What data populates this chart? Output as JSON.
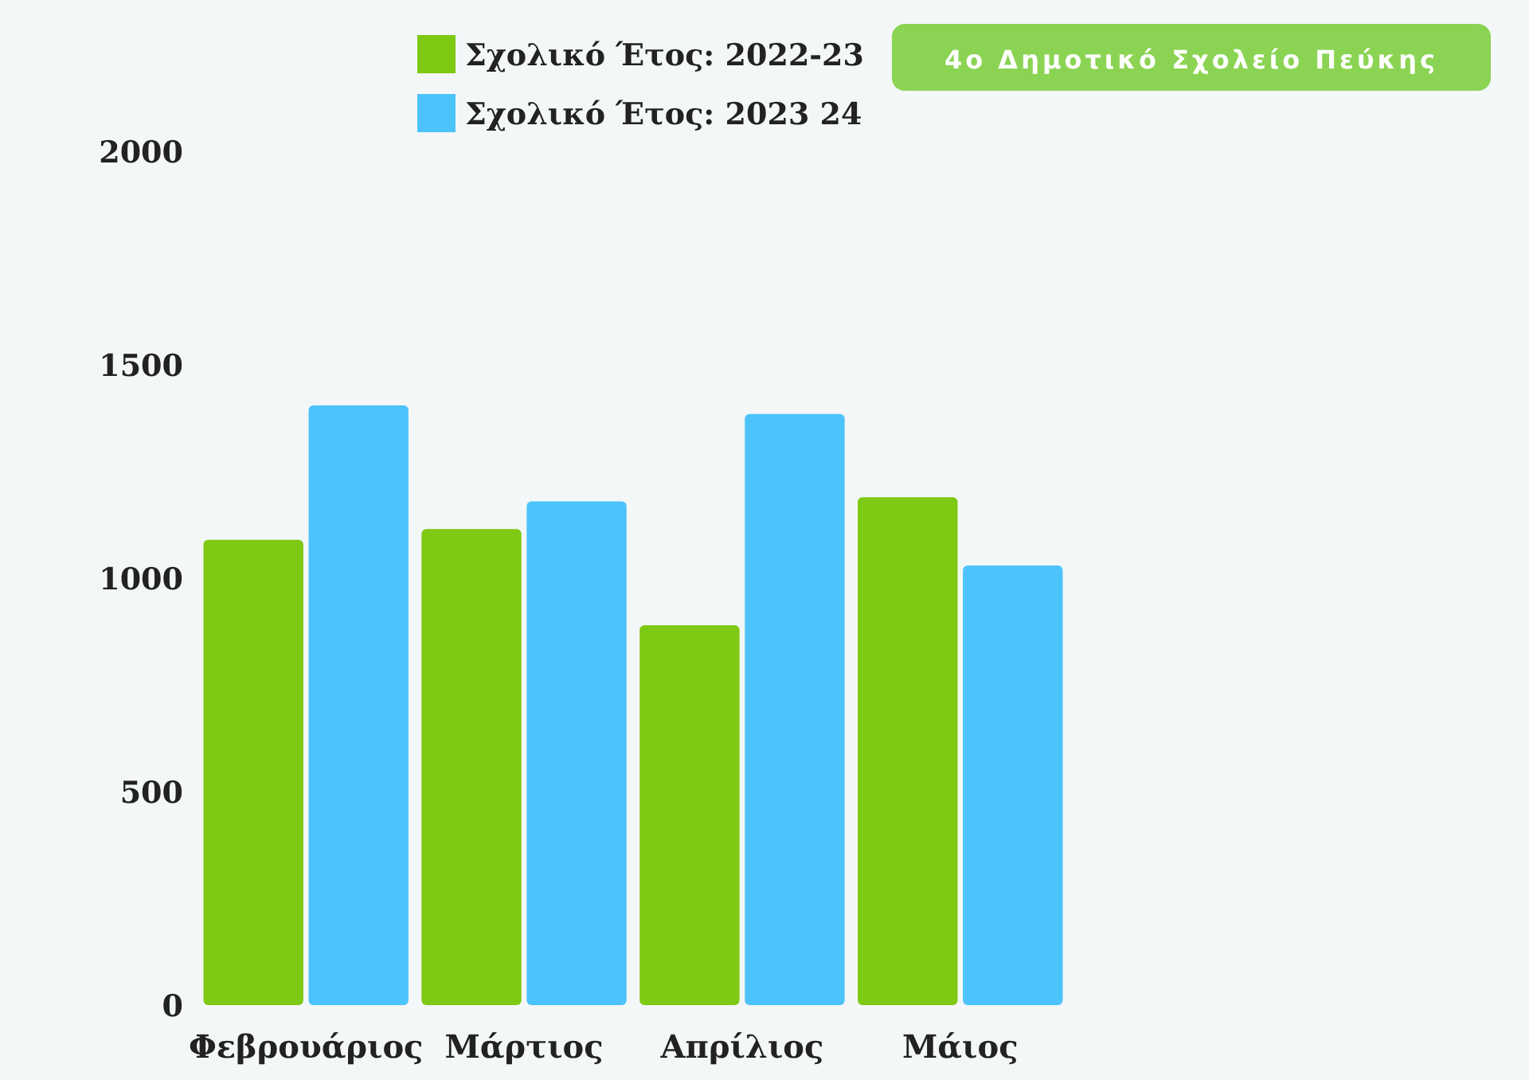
{
  "chart_data": {
    "type": "bar",
    "title": "4ο Δημοτικό Σχολείο Πεύκης",
    "categories": [
      "Φεβρουάριος",
      "Μάρτιος",
      "Απρίλιος",
      "Μάιος"
    ],
    "series": [
      {
        "name": "Σχολικό Έτος: 2022-23",
        "color": "#7ec913",
        "values": [
          1090,
          1115,
          890,
          1190
        ]
      },
      {
        "name": "Σχολικό Έτος: 2023 24",
        "color": "#4cc4fb",
        "values": [
          1405,
          1180,
          1385,
          1030
        ]
      }
    ],
    "ylim": [
      0,
      2000
    ],
    "yticks": [
      0,
      500,
      1000,
      1500,
      2000
    ],
    "legend": "top"
  }
}
